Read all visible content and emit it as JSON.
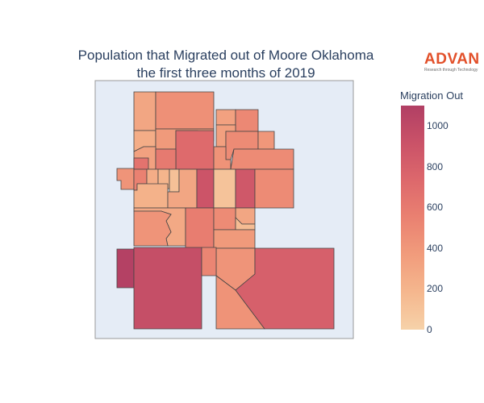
{
  "title": {
    "line1": "Population that Migrated out of Moore Oklahoma",
    "line2": "the first three months of 2019"
  },
  "logo": {
    "name": "ADVAN",
    "tagline": "Research through Technology"
  },
  "colorbar": {
    "title": "Migration Out",
    "min": 0,
    "max": 1100,
    "ticks": [
      "0",
      "200",
      "400",
      "600",
      "800",
      "1000"
    ],
    "colors": [
      "#f6d2a9",
      "#f5b78e",
      "#f19c7c",
      "#ea8171",
      "#dd686c",
      "#ca5268",
      "#b13f64"
    ]
  },
  "map": {
    "background": "#e5ecf6",
    "border_color": "#444444",
    "regions": [
      {
        "id": "r01",
        "value": 300
      },
      {
        "id": "r02",
        "value": 450
      },
      {
        "id": "r03",
        "value": 250
      },
      {
        "id": "r04",
        "value": 380
      },
      {
        "id": "r05",
        "value": 330
      },
      {
        "id": "r06",
        "value": 500
      },
      {
        "id": "r07",
        "value": 340
      },
      {
        "id": "r08",
        "value": 720
      },
      {
        "id": "r09",
        "value": 480
      },
      {
        "id": "r10",
        "value": 400
      },
      {
        "id": "r11",
        "value": 430
      },
      {
        "id": "r12",
        "value": 480
      },
      {
        "id": "r13",
        "value": 330
      },
      {
        "id": "r14",
        "value": 650
      },
      {
        "id": "r15",
        "value": 600
      },
      {
        "id": "r16",
        "value": 420
      },
      {
        "id": "r17",
        "value": 550
      },
      {
        "id": "r18",
        "value": 250
      },
      {
        "id": "r19",
        "value": 200
      },
      {
        "id": "r20",
        "value": 120
      },
      {
        "id": "r21",
        "value": 220
      },
      {
        "id": "r22",
        "value": 300
      },
      {
        "id": "r23",
        "value": 900
      },
      {
        "id": "r24",
        "value": 100
      },
      {
        "id": "r25",
        "value": 870
      },
      {
        "id": "r26",
        "value": 480
      },
      {
        "id": "r27",
        "value": 280
      },
      {
        "id": "r28",
        "value": 420
      },
      {
        "id": "r29",
        "value": 300
      },
      {
        "id": "r30",
        "value": 580
      },
      {
        "id": "r31",
        "value": 480
      },
      {
        "id": "r32",
        "value": 150
      },
      {
        "id": "r33",
        "value": 380
      },
      {
        "id": "r34",
        "value": 420
      },
      {
        "id": "r35",
        "value": 1080
      },
      {
        "id": "r36",
        "value": 950
      },
      {
        "id": "r37",
        "value": 430
      },
      {
        "id": "r38",
        "value": 800
      },
      {
        "id": "r39",
        "value": 520
      }
    ]
  }
}
